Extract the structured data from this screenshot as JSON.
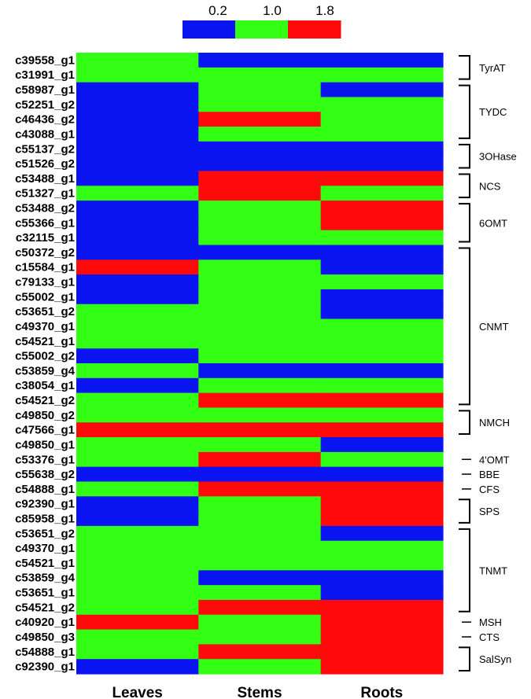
{
  "chart_data": {
    "type": "heatmap",
    "title": "",
    "xlabel": "",
    "ylabel": "",
    "columns": [
      "Leaves",
      "Stems",
      "Roots"
    ],
    "legend": {
      "position": "top",
      "ticks": [
        "0.2",
        "1.0",
        "1.8"
      ],
      "colors": [
        "#0a14f0",
        "#33ff14",
        "#ff0a0a"
      ]
    },
    "color_map": {
      "low": "#0a14f0",
      "mid": "#33ff14",
      "high": "#ff0a0a"
    },
    "rows": [
      {
        "label": "c39558_g1",
        "values": [
          "mid",
          "low",
          "low"
        ]
      },
      {
        "label": "c31991_g1",
        "values": [
          "mid",
          "mid",
          "mid"
        ]
      },
      {
        "label": "c58987_g1",
        "values": [
          "low",
          "mid",
          "low"
        ]
      },
      {
        "label": "c52251_g2",
        "values": [
          "low",
          "mid",
          "mid"
        ]
      },
      {
        "label": "c46436_g2",
        "values": [
          "low",
          "high",
          "mid"
        ]
      },
      {
        "label": "c43088_g1",
        "values": [
          "low",
          "mid",
          "mid"
        ]
      },
      {
        "label": "c55137_g2",
        "values": [
          "low",
          "low",
          "low"
        ]
      },
      {
        "label": "c51526_g2",
        "values": [
          "low",
          "low",
          "low"
        ]
      },
      {
        "label": "c53488_g1",
        "values": [
          "low",
          "high",
          "high"
        ]
      },
      {
        "label": "c51327_g1",
        "values": [
          "mid",
          "high",
          "mid"
        ]
      },
      {
        "label": "c53488_g2",
        "values": [
          "low",
          "mid",
          "high"
        ]
      },
      {
        "label": "c55366_g1",
        "values": [
          "low",
          "mid",
          "high"
        ]
      },
      {
        "label": "c32115_g1",
        "values": [
          "low",
          "mid",
          "mid"
        ]
      },
      {
        "label": "c50372_g2",
        "values": [
          "low",
          "low",
          "low"
        ]
      },
      {
        "label": "c15584_g1",
        "values": [
          "high",
          "mid",
          "low"
        ]
      },
      {
        "label": "c79133_g1",
        "values": [
          "low",
          "mid",
          "mid"
        ]
      },
      {
        "label": "c55002_g1",
        "values": [
          "low",
          "mid",
          "low"
        ]
      },
      {
        "label": "c53651_g2",
        "values": [
          "mid",
          "mid",
          "low"
        ]
      },
      {
        "label": "c49370_g1",
        "values": [
          "mid",
          "mid",
          "mid"
        ]
      },
      {
        "label": "c54521_g1",
        "values": [
          "mid",
          "mid",
          "mid"
        ]
      },
      {
        "label": "c55002_g2",
        "values": [
          "low",
          "mid",
          "mid"
        ]
      },
      {
        "label": "c53859_g4",
        "values": [
          "mid",
          "low",
          "low"
        ]
      },
      {
        "label": "c38054_g1",
        "values": [
          "low",
          "mid",
          "mid"
        ]
      },
      {
        "label": "c54521_g2",
        "values": [
          "mid",
          "high",
          "high"
        ]
      },
      {
        "label": "c49850_g2",
        "values": [
          "mid",
          "mid",
          "mid"
        ]
      },
      {
        "label": "c47566_g1",
        "values": [
          "high",
          "high",
          "high"
        ]
      },
      {
        "label": "c49850_g1",
        "values": [
          "mid",
          "mid",
          "low"
        ]
      },
      {
        "label": "c53376_g1",
        "values": [
          "mid",
          "high",
          "mid"
        ]
      },
      {
        "label": "c55638_g2",
        "values": [
          "low",
          "low",
          "low"
        ]
      },
      {
        "label": "c54888_g1",
        "values": [
          "mid",
          "high",
          "high"
        ]
      },
      {
        "label": "c92390_g1",
        "values": [
          "low",
          "mid",
          "high"
        ]
      },
      {
        "label": "c85958_g1",
        "values": [
          "low",
          "mid",
          "high"
        ]
      },
      {
        "label": "c53651_g2",
        "values": [
          "mid",
          "mid",
          "low"
        ]
      },
      {
        "label": "c49370_g1",
        "values": [
          "mid",
          "mid",
          "mid"
        ]
      },
      {
        "label": "c54521_g1",
        "values": [
          "mid",
          "mid",
          "mid"
        ]
      },
      {
        "label": "c53859_g4",
        "values": [
          "mid",
          "low",
          "low"
        ]
      },
      {
        "label": "c53651_g1",
        "values": [
          "mid",
          "mid",
          "low"
        ]
      },
      {
        "label": "c54521_g2",
        "values": [
          "mid",
          "high",
          "high"
        ]
      },
      {
        "label": "c40920_g1",
        "values": [
          "high",
          "mid",
          "high"
        ]
      },
      {
        "label": "c49850_g3",
        "values": [
          "mid",
          "mid",
          "high"
        ]
      },
      {
        "label": "c54888_g1",
        "values": [
          "mid",
          "high",
          "high"
        ]
      },
      {
        "label": "c92390_g1",
        "values": [
          "low",
          "mid",
          "high"
        ]
      }
    ],
    "groups": [
      {
        "label": "TyrAT",
        "start": 0,
        "end": 1,
        "style": "bracket"
      },
      {
        "label": "TYDC",
        "start": 2,
        "end": 5,
        "style": "bracket"
      },
      {
        "label": "3OHase",
        "start": 6,
        "end": 7,
        "style": "bracket"
      },
      {
        "label": "NCS",
        "start": 8,
        "end": 9,
        "style": "bracket"
      },
      {
        "label": "6OMT",
        "start": 10,
        "end": 12,
        "style": "bracket"
      },
      {
        "label": "CNMT",
        "start": 13,
        "end": 23,
        "style": "bracket"
      },
      {
        "label": "NMCH",
        "start": 24,
        "end": 25,
        "style": "bracket"
      },
      {
        "label": "4'OMT",
        "start": 27,
        "end": 27,
        "style": "dash"
      },
      {
        "label": "BBE",
        "start": 28,
        "end": 28,
        "style": "dash"
      },
      {
        "label": "CFS",
        "start": 29,
        "end": 29,
        "style": "dash"
      },
      {
        "label": "SPS",
        "start": 30,
        "end": 31,
        "style": "bracket"
      },
      {
        "label": "TNMT",
        "start": 32,
        "end": 37,
        "style": "bracket"
      },
      {
        "label": "MSH",
        "start": 38,
        "end": 38,
        "style": "dash"
      },
      {
        "label": "CTS",
        "start": 39,
        "end": 39,
        "style": "dash"
      },
      {
        "label": "SalSyn",
        "start": 40,
        "end": 41,
        "style": "bracket"
      }
    ]
  }
}
